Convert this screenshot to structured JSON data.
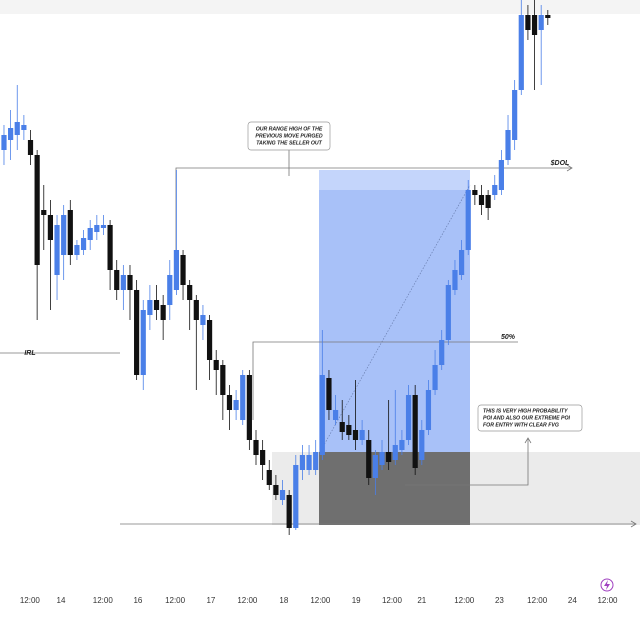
{
  "chart_data": {
    "type": "candlestick",
    "up_color": "#4a7fe8",
    "down_color": "#111111",
    "xlim": [
      -0.6,
      95.9
    ],
    "ylim": [
      0,
      560
    ],
    "xticks": [
      {
        "value": 3.9,
        "label": "12:00"
      },
      {
        "value": 8.6,
        "label": "14"
      },
      {
        "value": 14.9,
        "label": "12:00"
      },
      {
        "value": 20.2,
        "label": "16"
      },
      {
        "value": 25.8,
        "label": "12:00"
      },
      {
        "value": 31.2,
        "label": "17"
      },
      {
        "value": 36.7,
        "label": "12:00"
      },
      {
        "value": 42.2,
        "label": "18"
      },
      {
        "value": 47.7,
        "label": "12:00"
      },
      {
        "value": 53.1,
        "label": "19"
      },
      {
        "value": 58.5,
        "label": "12:00"
      },
      {
        "value": 63.0,
        "label": "21"
      },
      {
        "value": 69.4,
        "label": "12:00"
      },
      {
        "value": 74.7,
        "label": "23"
      },
      {
        "value": 80.4,
        "label": "12:00"
      },
      {
        "value": 85.7,
        "label": "24"
      },
      {
        "value": 91.0,
        "label": "12:00"
      }
    ],
    "open": [
      410,
      420,
      425,
      430,
      420,
      405,
      350,
      345,
      285,
      305,
      350,
      305,
      310,
      320,
      328,
      332,
      335,
      290,
      270,
      285,
      270,
      185,
      245,
      260,
      255,
      255,
      270,
      305,
      275,
      260,
      235,
      240,
      200,
      195,
      165,
      150,
      140,
      185,
      120,
      110,
      90,
      75,
      60,
      65,
      32,
      90,
      90,
      90,
      105,
      182,
      140,
      138,
      135,
      130,
      120,
      120,
      82,
      95,
      108,
      100,
      110,
      120,
      165,
      100,
      130,
      170,
      195,
      220,
      270,
      285,
      310,
      370,
      365,
      365,
      365,
      370,
      400,
      420,
      470,
      545,
      545,
      530,
      545
    ],
    "high": [
      435,
      450,
      475,
      445,
      430,
      410,
      375,
      360,
      345,
      355,
      360,
      320,
      330,
      340,
      345,
      345,
      340,
      300,
      295,
      295,
      280,
      260,
      275,
      275,
      265,
      300,
      390,
      310,
      280,
      265,
      255,
      245,
      210,
      200,
      175,
      170,
      190,
      190,
      130,
      120,
      100,
      85,
      80,
      70,
      105,
      115,
      115,
      120,
      230,
      190,
      165,
      160,
      145,
      180,
      140,
      130,
      110,
      120,
      160,
      170,
      130,
      175,
      175,
      140,
      180,
      210,
      230,
      280,
      300,
      320,
      380,
      375,
      375,
      370,
      385,
      410,
      445,
      480,
      560,
      555,
      560,
      555,
      550
    ],
    "low": [
      395,
      400,
      410,
      420,
      395,
      240,
      310,
      250,
      260,
      280,
      295,
      300,
      305,
      310,
      320,
      325,
      270,
      260,
      250,
      240,
      180,
      170,
      230,
      240,
      220,
      240,
      265,
      260,
      230,
      170,
      220,
      180,
      165,
      140,
      130,
      140,
      135,
      110,
      95,
      80,
      70,
      60,
      55,
      25,
      30,
      80,
      85,
      85,
      100,
      140,
      135,
      120,
      120,
      110,
      115,
      75,
      65,
      90,
      90,
      95,
      105,
      115,
      85,
      95,
      125,
      165,
      190,
      215,
      265,
      280,
      305,
      355,
      345,
      340,
      360,
      365,
      395,
      410,
      465,
      520,
      470,
      475,
      535
    ],
    "close": [
      425,
      432,
      438,
      435,
      405,
      295,
      345,
      320,
      335,
      345,
      305,
      315,
      322,
      332,
      335,
      335,
      290,
      270,
      285,
      270,
      185,
      250,
      260,
      250,
      240,
      285,
      310,
      275,
      260,
      240,
      245,
      200,
      190,
      165,
      150,
      160,
      185,
      120,
      105,
      95,
      75,
      65,
      70,
      32,
      95,
      105,
      105,
      108,
      185,
      150,
      150,
      128,
      125,
      120,
      130,
      82,
      105,
      108,
      98,
      115,
      120,
      165,
      92,
      130,
      170,
      195,
      220,
      275,
      290,
      310,
      370,
      365,
      355,
      352,
      375,
      400,
      430,
      470,
      545,
      530,
      525,
      545,
      542
    ],
    "annotations": {
      "range_high": [
        "OUR RANGE HIGH OF THE",
        "PREVIOUS MOVE PURGED",
        "TAKING THE SELLER OUT"
      ],
      "dol": "$DOL",
      "fifty": "50%",
      "irl": "IRL",
      "poi": [
        "THIS IS VERY HIGH PROBABILITY",
        "POI AND ALSO OUR EXTREME POI",
        "FOR ENTRY WITH CLEAR FVG"
      ]
    }
  }
}
